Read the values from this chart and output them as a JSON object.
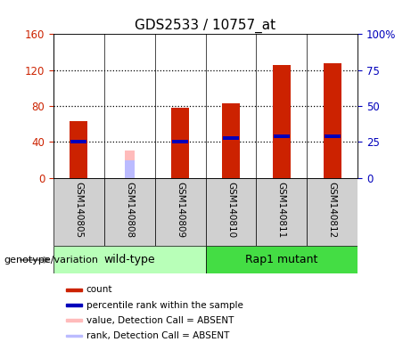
{
  "title": "GDS2533 / 10757_at",
  "samples": [
    "GSM140805",
    "GSM140808",
    "GSM140809",
    "GSM140810",
    "GSM140811",
    "GSM140812"
  ],
  "count_values": [
    63,
    null,
    78,
    83,
    126,
    128
  ],
  "absent_value": [
    null,
    30,
    null,
    null,
    null,
    null
  ],
  "absent_rank": [
    null,
    20,
    null,
    null,
    null,
    null
  ],
  "percentile_rank": [
    40,
    null,
    40,
    44,
    46,
    46
  ],
  "ylim_left": [
    0,
    160
  ],
  "ylim_right": [
    0,
    100
  ],
  "yticks_left": [
    0,
    40,
    80,
    120,
    160
  ],
  "yticks_right": [
    0,
    25,
    50,
    75,
    100
  ],
  "yticklabels_right": [
    "0",
    "25",
    "50",
    "75",
    "100%"
  ],
  "group1_indices": [
    0,
    1,
    2
  ],
  "group2_indices": [
    3,
    4,
    5
  ],
  "group1_label": "wild-type",
  "group2_label": "Rap1 mutant",
  "group1_color": "#b8ffb8",
  "group2_color": "#44dd44",
  "bar_color_count": "#cc2200",
  "bar_color_absent_value": "#ffbbbb",
  "bar_color_rank": "#0000bb",
  "bar_color_absent_rank": "#bbbbff",
  "bar_width": 0.35,
  "sample_bg_color": "#d0d0d0",
  "legend_items": [
    {
      "color": "#cc2200",
      "label": "count"
    },
    {
      "color": "#0000bb",
      "label": "percentile rank within the sample"
    },
    {
      "color": "#ffbbbb",
      "label": "value, Detection Call = ABSENT"
    },
    {
      "color": "#bbbbff",
      "label": "rank, Detection Call = ABSENT"
    }
  ],
  "genotype_label": "genotype/variation",
  "left_tick_color": "#cc2200",
  "right_tick_color": "#0000bb"
}
